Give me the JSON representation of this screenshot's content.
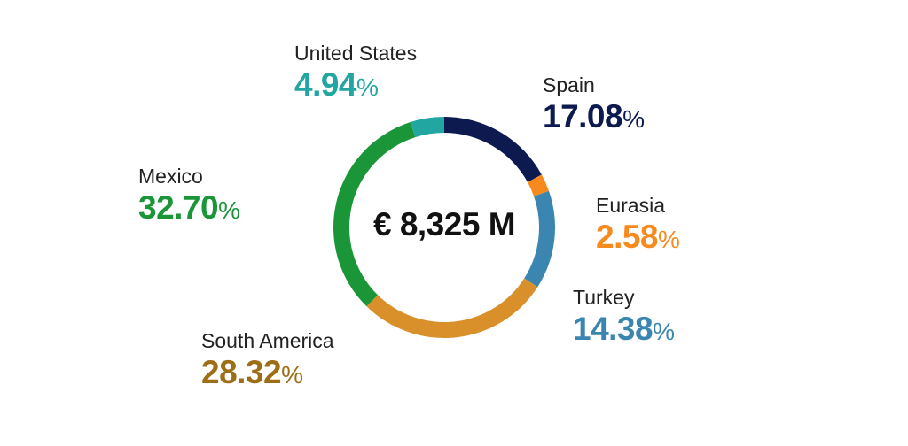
{
  "chart_data": {
    "type": "pie",
    "center_label": "€ 8,325 M",
    "slices": [
      {
        "name": "Spain",
        "value": 17.08,
        "value_text": "17.08",
        "unit": "%",
        "color": "#0c1a50"
      },
      {
        "name": "Eurasia",
        "value": 2.58,
        "value_text": "2.58",
        "unit": "%",
        "color": "#f78a1d"
      },
      {
        "name": "Turkey",
        "value": 14.38,
        "value_text": "14.38",
        "unit": "%",
        "color": "#3a86b0"
      },
      {
        "name": "South America",
        "value": 28.32,
        "value_text": "28.32",
        "unit": "%",
        "color": "#d9902b"
      },
      {
        "name": "Mexico",
        "value": 32.7,
        "value_text": "32.70",
        "unit": "%",
        "color": "#1a9639"
      },
      {
        "name": "United States",
        "value": 4.94,
        "value_text": "4.94",
        "unit": "%",
        "color": "#21a6a1"
      }
    ],
    "label_colors": {
      "Spain": "#0c1a50",
      "Eurasia": "#f78a1d",
      "Turkey": "#3a86b0",
      "South America": "#9c6e16",
      "Mexico": "#1a9639",
      "United States": "#21a6a1"
    }
  }
}
